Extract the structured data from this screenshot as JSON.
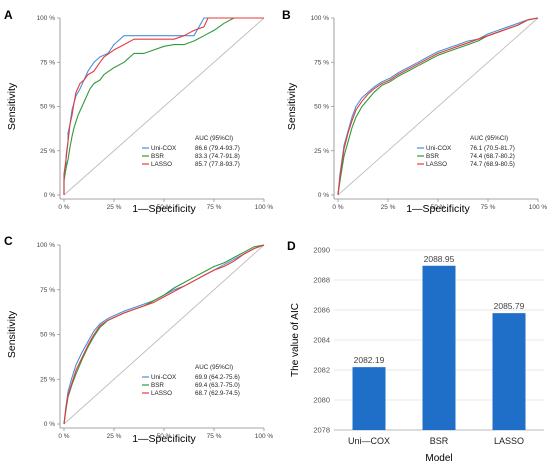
{
  "colors": {
    "uni_cox": "#4a90d9",
    "bsr": "#2e9a3a",
    "lasso": "#e8393b",
    "bar": "#1f6fc9",
    "diagonal": "#bdbdbd",
    "axis": "#888888"
  },
  "chart_data": [
    {
      "panel": "A",
      "type": "line",
      "xlabel": "1—Specificity",
      "ylabel": "Sensitivity",
      "xticks": [
        "0 %",
        "25 %",
        "50 %",
        "75 %",
        "100 %"
      ],
      "yticks": [
        "0 %",
        "25 %",
        "50 %",
        "75 %",
        "100 %"
      ],
      "legend_title": "AUC (95%CI)",
      "legend_position": "bottom-right",
      "series": [
        {
          "name": "Uni-COX",
          "auc": "86.6 (79.4-93.7)",
          "color_key": "uni_cox",
          "x": [
            0,
            0,
            0.01,
            0.01,
            0.02,
            0.02,
            0.03,
            0.04,
            0.05,
            0.06,
            0.08,
            0.1,
            0.12,
            0.15,
            0.18,
            0.22,
            0.25,
            0.3,
            0.35,
            0.4,
            0.45,
            0.5,
            0.55,
            0.6,
            0.65,
            0.7,
            0.75,
            0.78,
            0.8,
            0.85,
            0.9,
            1.0
          ],
          "y": [
            0,
            0.1,
            0.15,
            0.22,
            0.3,
            0.35,
            0.4,
            0.48,
            0.52,
            0.56,
            0.6,
            0.65,
            0.7,
            0.75,
            0.78,
            0.8,
            0.85,
            0.9,
            0.9,
            0.9,
            0.9,
            0.9,
            0.9,
            0.9,
            0.9,
            1.0,
            1.0,
            1.0,
            1.0,
            1.0,
            1.0,
            1.0
          ]
        },
        {
          "name": "BSR",
          "auc": "83.3 (74.7-91.8)",
          "color_key": "bsr",
          "x": [
            0,
            0,
            0.01,
            0.02,
            0.03,
            0.04,
            0.05,
            0.07,
            0.09,
            0.11,
            0.13,
            0.15,
            0.18,
            0.2,
            0.25,
            0.3,
            0.35,
            0.4,
            0.45,
            0.5,
            0.55,
            0.6,
            0.65,
            0.7,
            0.75,
            0.8,
            0.85,
            0.9,
            1.0
          ],
          "y": [
            0,
            0.08,
            0.15,
            0.2,
            0.27,
            0.33,
            0.38,
            0.45,
            0.5,
            0.55,
            0.6,
            0.63,
            0.65,
            0.68,
            0.72,
            0.75,
            0.8,
            0.8,
            0.82,
            0.84,
            0.85,
            0.85,
            0.87,
            0.9,
            0.93,
            0.97,
            1.0,
            1.0,
            1.0
          ]
        },
        {
          "name": "LASSO",
          "auc": "85.7 (77.8-93.7)",
          "color_key": "lasso",
          "x": [
            0,
            0,
            0.01,
            0.02,
            0.03,
            0.04,
            0.05,
            0.06,
            0.08,
            0.1,
            0.12,
            0.15,
            0.18,
            0.2,
            0.25,
            0.3,
            0.35,
            0.4,
            0.45,
            0.5,
            0.55,
            0.6,
            0.65,
            0.7,
            0.72,
            0.75,
            0.8,
            0.9,
            1.0
          ],
          "y": [
            0,
            0.12,
            0.2,
            0.3,
            0.4,
            0.45,
            0.52,
            0.58,
            0.63,
            0.65,
            0.68,
            0.7,
            0.75,
            0.78,
            0.82,
            0.85,
            0.88,
            0.88,
            0.88,
            0.88,
            0.88,
            0.9,
            0.93,
            0.95,
            1.0,
            1.0,
            1.0,
            1.0,
            1.0
          ]
        }
      ]
    },
    {
      "panel": "B",
      "type": "line",
      "xlabel": "1—Specificity",
      "ylabel": "Sensitivity",
      "xticks": [
        "0 %",
        "25 %",
        "50 %",
        "75 %",
        "100 %"
      ],
      "yticks": [
        "0 %",
        "25 %",
        "50 %",
        "75 %",
        "100 %"
      ],
      "legend_title": "AUC (95%CI)",
      "legend_position": "bottom-right",
      "series": [
        {
          "name": "Uni-COX",
          "auc": "76.1 (70.5-81.7)",
          "color_key": "uni_cox",
          "x": [
            0,
            0.01,
            0.02,
            0.03,
            0.05,
            0.07,
            0.09,
            0.12,
            0.15,
            0.18,
            0.22,
            0.26,
            0.3,
            0.35,
            0.4,
            0.45,
            0.5,
            0.55,
            0.6,
            0.65,
            0.7,
            0.75,
            0.8,
            0.85,
            0.9,
            0.95,
            1.0
          ],
          "y": [
            0,
            0.12,
            0.2,
            0.28,
            0.36,
            0.44,
            0.5,
            0.55,
            0.58,
            0.61,
            0.64,
            0.66,
            0.69,
            0.72,
            0.75,
            0.78,
            0.81,
            0.83,
            0.85,
            0.87,
            0.88,
            0.91,
            0.93,
            0.95,
            0.97,
            0.99,
            1.0
          ]
        },
        {
          "name": "BSR",
          "auc": "74.4 (68.7-80.2)",
          "color_key": "bsr",
          "x": [
            0,
            0.01,
            0.02,
            0.03,
            0.05,
            0.07,
            0.09,
            0.12,
            0.15,
            0.18,
            0.22,
            0.26,
            0.3,
            0.35,
            0.4,
            0.45,
            0.5,
            0.55,
            0.6,
            0.65,
            0.7,
            0.75,
            0.8,
            0.85,
            0.9,
            0.95,
            1.0
          ],
          "y": [
            0,
            0.08,
            0.15,
            0.22,
            0.3,
            0.38,
            0.44,
            0.5,
            0.54,
            0.58,
            0.62,
            0.64,
            0.67,
            0.7,
            0.73,
            0.76,
            0.79,
            0.81,
            0.83,
            0.85,
            0.87,
            0.9,
            0.92,
            0.94,
            0.96,
            0.99,
            1.0
          ]
        },
        {
          "name": "LASSO",
          "auc": "74.7 (68.9-80.5)",
          "color_key": "lasso",
          "x": [
            0,
            0.01,
            0.02,
            0.03,
            0.05,
            0.07,
            0.09,
            0.12,
            0.15,
            0.18,
            0.22,
            0.26,
            0.3,
            0.35,
            0.4,
            0.45,
            0.5,
            0.55,
            0.6,
            0.65,
            0.7,
            0.75,
            0.8,
            0.85,
            0.9,
            0.95,
            1.0
          ],
          "y": [
            0,
            0.1,
            0.18,
            0.26,
            0.35,
            0.42,
            0.48,
            0.53,
            0.57,
            0.6,
            0.63,
            0.65,
            0.68,
            0.71,
            0.74,
            0.77,
            0.8,
            0.82,
            0.84,
            0.86,
            0.88,
            0.9,
            0.92,
            0.94,
            0.96,
            0.99,
            1.0
          ]
        }
      ]
    },
    {
      "panel": "C",
      "type": "line",
      "xlabel": "1—Specificity",
      "ylabel": "Sensitivity",
      "xticks": [
        "0 %",
        "25 %",
        "50 %",
        "75 %",
        "100 %"
      ],
      "yticks": [
        "0 %",
        "25 %",
        "50 %",
        "75 %",
        "100 %"
      ],
      "legend_title": "AUC (95%CI)",
      "legend_position": "bottom-right",
      "series": [
        {
          "name": "Uni-COX",
          "auc": "69.9 (64.2-75.6)",
          "color_key": "uni_cox",
          "x": [
            0,
            0.01,
            0.02,
            0.04,
            0.06,
            0.09,
            0.12,
            0.15,
            0.18,
            0.22,
            0.26,
            0.3,
            0.35,
            0.4,
            0.45,
            0.5,
            0.55,
            0.6,
            0.65,
            0.7,
            0.75,
            0.8,
            0.85,
            0.9,
            0.95,
            1.0
          ],
          "y": [
            0,
            0.1,
            0.18,
            0.26,
            0.33,
            0.4,
            0.46,
            0.52,
            0.56,
            0.59,
            0.61,
            0.63,
            0.65,
            0.67,
            0.69,
            0.72,
            0.75,
            0.77,
            0.8,
            0.83,
            0.86,
            0.89,
            0.92,
            0.95,
            0.98,
            1.0
          ]
        },
        {
          "name": "BSR",
          "auc": "69.4 (63.7-75.0)",
          "color_key": "bsr",
          "x": [
            0,
            0.01,
            0.02,
            0.04,
            0.06,
            0.09,
            0.12,
            0.15,
            0.18,
            0.22,
            0.26,
            0.3,
            0.35,
            0.4,
            0.45,
            0.5,
            0.55,
            0.6,
            0.65,
            0.7,
            0.75,
            0.8,
            0.85,
            0.9,
            0.95,
            1.0
          ],
          "y": [
            0,
            0.08,
            0.15,
            0.22,
            0.28,
            0.36,
            0.43,
            0.49,
            0.54,
            0.58,
            0.6,
            0.62,
            0.64,
            0.66,
            0.69,
            0.72,
            0.76,
            0.79,
            0.82,
            0.85,
            0.88,
            0.9,
            0.93,
            0.96,
            0.99,
            1.0
          ]
        },
        {
          "name": "LASSO",
          "auc": "68.7 (62.9-74.5)",
          "color_key": "lasso",
          "x": [
            0,
            0.01,
            0.02,
            0.04,
            0.06,
            0.09,
            0.12,
            0.15,
            0.18,
            0.22,
            0.26,
            0.3,
            0.35,
            0.4,
            0.45,
            0.5,
            0.55,
            0.6,
            0.65,
            0.7,
            0.75,
            0.8,
            0.85,
            0.9,
            0.95,
            1.0
          ],
          "y": [
            0,
            0.09,
            0.16,
            0.23,
            0.3,
            0.37,
            0.44,
            0.5,
            0.55,
            0.58,
            0.6,
            0.62,
            0.64,
            0.66,
            0.68,
            0.71,
            0.74,
            0.77,
            0.8,
            0.83,
            0.86,
            0.88,
            0.91,
            0.95,
            0.98,
            1.0
          ]
        }
      ]
    },
    {
      "panel": "D",
      "type": "bar",
      "xlabel": "Model",
      "ylabel": "The value of AIC",
      "categories": [
        "Uni—COX",
        "BSR",
        "LASSO"
      ],
      "values": [
        2082.19,
        2088.95,
        2085.79
      ],
      "value_labels": [
        "2082.19",
        "2088.95",
        "2085.79"
      ],
      "ylim": [
        2078,
        2090
      ],
      "yticks": [
        "2078",
        "2080",
        "2082",
        "2084",
        "2086",
        "2088",
        "2090"
      ],
      "grid": true
    }
  ]
}
